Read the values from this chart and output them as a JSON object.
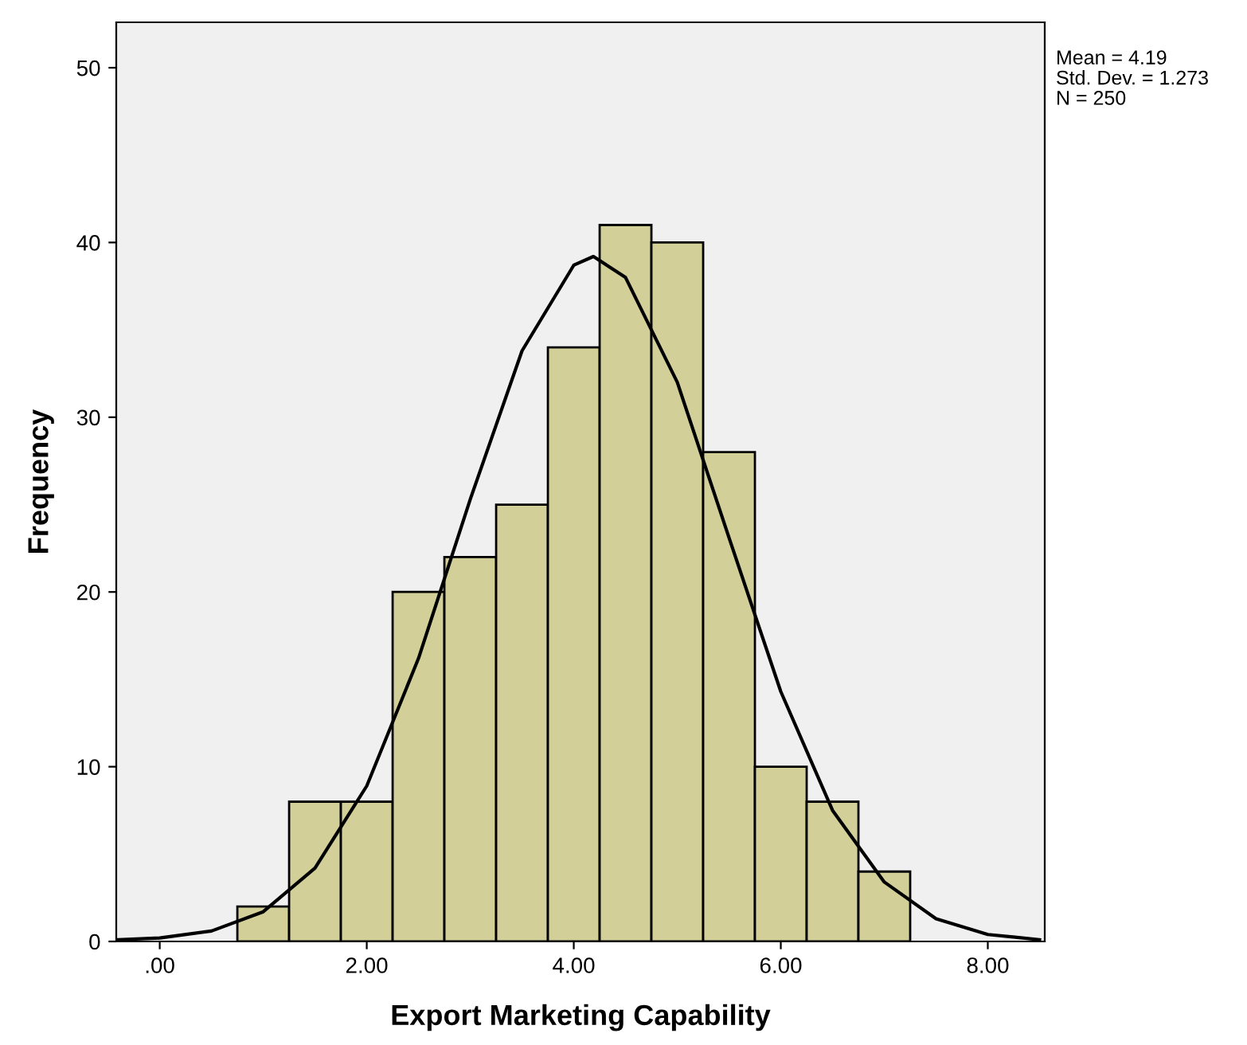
{
  "chart_data": {
    "type": "histogram",
    "xlabel": "Export Marketing Capability",
    "ylabel": "Frequency",
    "series": [
      {
        "bins": [
          0.75,
          1.25,
          1.75,
          2.25,
          2.75,
          3.25,
          3.75,
          4.25,
          4.75,
          5.25,
          5.75,
          6.25,
          6.75,
          7.25
        ],
        "values": [
          2,
          8,
          8,
          20,
          22,
          25,
          34,
          41,
          40,
          28,
          10,
          8,
          4
        ],
        "color": "#d3cf98"
      },
      {
        "type": "line",
        "x": [
          -0.4,
          0,
          0.5,
          1,
          1.5,
          2,
          2.5,
          3,
          3.5,
          4,
          4.19,
          4.5,
          5,
          5.5,
          6,
          6.5,
          7,
          7.5,
          8,
          8.5
        ],
        "values": [
          0.1,
          0.2,
          0.6,
          1.7,
          4.2,
          8.9,
          16.2,
          25.3,
          33.8,
          38.7,
          39.2,
          38.0,
          32.0,
          23.1,
          14.3,
          7.5,
          3.4,
          1.3,
          0.4,
          0.1
        ],
        "color": "#000000"
      }
    ],
    "xlim": [
      -0.42,
      8.55
    ],
    "ylim": [
      0,
      52.6
    ],
    "xticks": [
      {
        "value": 0,
        "label": ".00"
      },
      {
        "value": 2,
        "label": "2.00"
      },
      {
        "value": 4,
        "label": "4.00"
      },
      {
        "value": 6,
        "label": "6.00"
      },
      {
        "value": 8,
        "label": "8.00"
      }
    ],
    "yticks": [
      0,
      10,
      20,
      30,
      40,
      50
    ],
    "annotations": [
      "Mean = 4.19",
      "Std. Dev. = 1.273",
      "N = 250"
    ],
    "grid": false,
    "legend": false
  }
}
